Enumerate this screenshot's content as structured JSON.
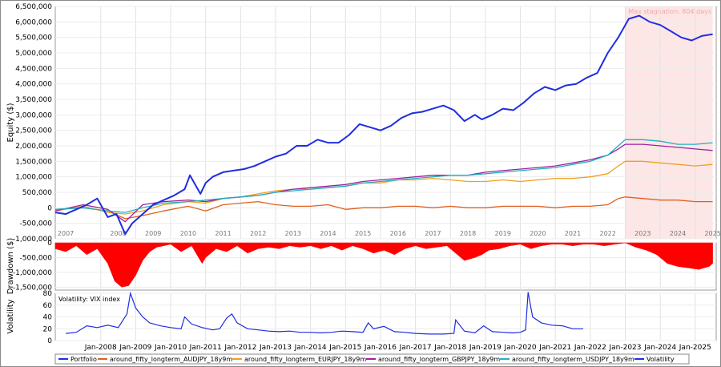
{
  "chart_data": [
    {
      "type": "line",
      "ylabel": "Equity ($)",
      "ylim": [
        -1000000,
        6500000
      ],
      "ytick_labels": [
        "6,500,000",
        "6,000,000",
        "5,500,000",
        "5,000,000",
        "4,500,000",
        "4,000,000",
        "3,500,000",
        "3,000,000",
        "2,500,000",
        "2,000,000",
        "1,500,000",
        "1,000,000",
        "500,000",
        "0",
        "-500,000",
        "-1,000,000"
      ],
      "year_labels": [
        "2007",
        "2008",
        "2009",
        "2010",
        "2011",
        "2012",
        "2013",
        "2014",
        "2015",
        "2016",
        "2017",
        "2018",
        "2019",
        "2020",
        "2021",
        "2022",
        "2023",
        "2024",
        "2025"
      ],
      "annotation": "Max stagnation: 804 days",
      "stagnation_start": 2023.0,
      "stagnation_end": 2025.5,
      "grid": true,
      "series": [
        {
          "name": "Portfolio",
          "color": "#1f2ee0",
          "x": [
            2006.7,
            2007.0,
            2007.3,
            2007.6,
            2007.9,
            2008.2,
            2008.45,
            2008.7,
            2008.9,
            2009.2,
            2009.5,
            2009.8,
            2010.1,
            2010.4,
            2010.55,
            2010.7,
            2010.85,
            2011.0,
            2011.2,
            2011.5,
            2011.8,
            2012.1,
            2012.4,
            2012.7,
            2013.0,
            2013.3,
            2013.6,
            2013.9,
            2014.2,
            2014.5,
            2014.8,
            2015.1,
            2015.4,
            2015.7,
            2016.0,
            2016.3,
            2016.6,
            2016.9,
            2017.2,
            2017.5,
            2017.8,
            2018.1,
            2018.4,
            2018.7,
            2018.9,
            2019.2,
            2019.5,
            2019.8,
            2020.1,
            2020.4,
            2020.7,
            2021.0,
            2021.3,
            2021.6,
            2021.9,
            2022.2,
            2022.5,
            2022.8,
            2023.1,
            2023.4,
            2023.7,
            2024.0,
            2024.3,
            2024.6,
            2024.9,
            2025.2,
            2025.5
          ],
          "y": [
            -150000,
            -200000,
            -50000,
            100000,
            300000,
            -300000,
            -200000,
            -850000,
            -500000,
            -200000,
            100000,
            250000,
            400000,
            600000,
            1050000,
            750000,
            450000,
            800000,
            1000000,
            1150000,
            1200000,
            1250000,
            1350000,
            1500000,
            1650000,
            1750000,
            2000000,
            2000000,
            2200000,
            2100000,
            2100000,
            2350000,
            2700000,
            2600000,
            2500000,
            2650000,
            2900000,
            3050000,
            3100000,
            3200000,
            3300000,
            3150000,
            2800000,
            3000000,
            2850000,
            3000000,
            3200000,
            3150000,
            3400000,
            3700000,
            3900000,
            3800000,
            3950000,
            4000000,
            4200000,
            4350000,
            5000000,
            5500000,
            6100000,
            6200000,
            6000000,
            5900000,
            5700000,
            5500000,
            5400000,
            5550000,
            5600000
          ]
        },
        {
          "name": "around_fifty_longterm_AUDJPY_18y9m",
          "color": "#e06020",
          "x": [
            2006.7,
            2007.5,
            2008.2,
            2008.7,
            2009.2,
            2009.8,
            2010.5,
            2011.0,
            2011.5,
            2012.0,
            2012.5,
            2013.0,
            2013.5,
            2014.0,
            2014.5,
            2015.0,
            2015.5,
            2016.0,
            2016.5,
            2017.0,
            2017.5,
            2018.0,
            2018.5,
            2019.0,
            2019.5,
            2020.0,
            2020.5,
            2021.0,
            2021.5,
            2022.0,
            2022.5,
            2022.8,
            2023.0,
            2023.5,
            2024.0,
            2024.5,
            2025.0,
            2025.5
          ],
          "y": [
            -50000,
            0,
            -100000,
            -350000,
            -250000,
            -100000,
            50000,
            -100000,
            100000,
            150000,
            200000,
            100000,
            50000,
            50000,
            100000,
            -50000,
            0,
            0,
            50000,
            50000,
            0,
            50000,
            0,
            0,
            50000,
            50000,
            50000,
            0,
            50000,
            50000,
            100000,
            300000,
            350000,
            300000,
            250000,
            250000,
            200000,
            200000
          ]
        },
        {
          "name": "around_fifty_longterm_EURJPY_18y9m",
          "color": "#f0a020",
          "x": [
            2006.7,
            2007.5,
            2008.2,
            2008.7,
            2009.2,
            2009.8,
            2010.5,
            2011.0,
            2011.5,
            2012.0,
            2012.5,
            2013.0,
            2013.5,
            2014.0,
            2014.5,
            2015.0,
            2015.5,
            2016.0,
            2016.5,
            2017.0,
            2017.5,
            2018.0,
            2018.5,
            2019.0,
            2019.5,
            2020.0,
            2020.5,
            2021.0,
            2021.5,
            2022.0,
            2022.5,
            2022.8,
            2023.0,
            2023.5,
            2024.0,
            2024.5,
            2025.0,
            2025.5
          ],
          "y": [
            -100000,
            50000,
            -150000,
            -200000,
            -100000,
            100000,
            200000,
            150000,
            300000,
            350000,
            450000,
            550000,
            600000,
            600000,
            650000,
            700000,
            800000,
            800000,
            900000,
            900000,
            950000,
            900000,
            850000,
            850000,
            900000,
            850000,
            900000,
            950000,
            950000,
            1000000,
            1100000,
            1350000,
            1500000,
            1500000,
            1450000,
            1400000,
            1350000,
            1400000
          ]
        },
        {
          "name": "around_fifty_longterm_GBPJPY_18y9m",
          "color": "#a020a0",
          "x": [
            2006.7,
            2007.5,
            2008.2,
            2008.7,
            2009.2,
            2009.8,
            2010.5,
            2011.0,
            2011.5,
            2012.0,
            2012.5,
            2013.0,
            2013.5,
            2014.0,
            2014.5,
            2015.0,
            2015.5,
            2016.0,
            2016.5,
            2017.0,
            2017.5,
            2018.0,
            2018.5,
            2019.0,
            2019.5,
            2020.0,
            2020.5,
            2021.0,
            2021.5,
            2022.0,
            2022.5,
            2022.8,
            2023.0,
            2023.5,
            2024.0,
            2024.5,
            2025.0,
            2025.5
          ],
          "y": [
            -100000,
            100000,
            -50000,
            -450000,
            100000,
            200000,
            250000,
            200000,
            300000,
            350000,
            400000,
            500000,
            600000,
            650000,
            700000,
            750000,
            850000,
            900000,
            950000,
            1000000,
            1050000,
            1050000,
            1050000,
            1150000,
            1200000,
            1250000,
            1300000,
            1350000,
            1450000,
            1550000,
            1700000,
            1900000,
            2050000,
            2050000,
            2000000,
            1950000,
            1900000,
            1850000
          ]
        },
        {
          "name": "around_fifty_longterm_USDJPY_18y9m",
          "color": "#20b0c0",
          "x": [
            2006.7,
            2007.5,
            2008.2,
            2008.7,
            2009.2,
            2009.8,
            2010.5,
            2011.0,
            2011.5,
            2012.0,
            2012.5,
            2013.0,
            2013.5,
            2014.0,
            2014.5,
            2015.0,
            2015.5,
            2016.0,
            2016.5,
            2017.0,
            2017.5,
            2018.0,
            2018.5,
            2019.0,
            2019.5,
            2020.0,
            2020.5,
            2021.0,
            2021.5,
            2022.0,
            2022.5,
            2022.8,
            2023.0,
            2023.5,
            2024.0,
            2024.5,
            2025.0,
            2025.5
          ],
          "y": [
            -50000,
            0,
            -100000,
            -150000,
            0,
            150000,
            200000,
            250000,
            300000,
            350000,
            400000,
            500000,
            550000,
            600000,
            650000,
            700000,
            800000,
            850000,
            900000,
            950000,
            1000000,
            1050000,
            1050000,
            1100000,
            1150000,
            1200000,
            1250000,
            1300000,
            1400000,
            1500000,
            1700000,
            2000000,
            2200000,
            2200000,
            2150000,
            2050000,
            2050000,
            2100000
          ]
        }
      ]
    },
    {
      "type": "area",
      "ylabel": "Drawdown ($)",
      "ylim": [
        -1600000,
        0
      ],
      "ytick_labels": [
        "0",
        "-500,000",
        "-1,000,000",
        "-1,500,000"
      ],
      "color": "#ff0000",
      "x": [
        2006.7,
        2007.0,
        2007.3,
        2007.6,
        2007.9,
        2008.2,
        2008.4,
        2008.6,
        2008.8,
        2009.0,
        2009.2,
        2009.4,
        2009.6,
        2009.8,
        2010.0,
        2010.3,
        2010.6,
        2010.9,
        2011.0,
        2011.3,
        2011.6,
        2011.9,
        2012.2,
        2012.5,
        2012.8,
        2013.1,
        2013.4,
        2013.7,
        2014.0,
        2014.3,
        2014.6,
        2014.9,
        2015.2,
        2015.5,
        2015.8,
        2016.1,
        2016.4,
        2016.7,
        2017.0,
        2017.3,
        2017.6,
        2017.9,
        2018.1,
        2018.4,
        2018.7,
        2018.9,
        2019.1,
        2019.4,
        2019.7,
        2020.0,
        2020.3,
        2020.6,
        2020.9,
        2021.2,
        2021.5,
        2021.8,
        2022.1,
        2022.4,
        2022.7,
        2023.0,
        2023.3,
        2023.6,
        2023.9,
        2024.2,
        2024.5,
        2024.8,
        2025.1,
        2025.4,
        2025.5
      ],
      "y": [
        -200000,
        -300000,
        -100000,
        -400000,
        -200000,
        -700000,
        -1300000,
        -1500000,
        -1450000,
        -1100000,
        -600000,
        -300000,
        -150000,
        -100000,
        -50000,
        -300000,
        -100000,
        -700000,
        -500000,
        -200000,
        -300000,
        -100000,
        -350000,
        -200000,
        -150000,
        -200000,
        -100000,
        -150000,
        -100000,
        -200000,
        -100000,
        -250000,
        -100000,
        -200000,
        -350000,
        -250000,
        -400000,
        -200000,
        -100000,
        -200000,
        -150000,
        -100000,
        -300000,
        -600000,
        -500000,
        -400000,
        -250000,
        -200000,
        -100000,
        -50000,
        -200000,
        -100000,
        -50000,
        -50000,
        -100000,
        -50000,
        -50000,
        -100000,
        -50000,
        0,
        -150000,
        -250000,
        -400000,
        -700000,
        -800000,
        -850000,
        -900000,
        -800000,
        -700000
      ]
    },
    {
      "type": "line",
      "ylabel": "Volatility",
      "label": "Volatility: VIX index",
      "ylim": [
        0,
        80
      ],
      "ytick_labels": [
        "80",
        "60",
        "40",
        "20",
        "0"
      ],
      "color": "#1f2ee0",
      "x": [
        2007.0,
        2007.3,
        2007.6,
        2007.9,
        2008.2,
        2008.5,
        2008.75,
        2008.85,
        2009.0,
        2009.2,
        2009.4,
        2009.7,
        2010.0,
        2010.3,
        2010.4,
        2010.6,
        2010.9,
        2011.2,
        2011.4,
        2011.6,
        2011.75,
        2011.9,
        2012.2,
        2012.5,
        2012.8,
        2013.1,
        2013.4,
        2013.7,
        2014.0,
        2014.3,
        2014.6,
        2014.9,
        2015.2,
        2015.5,
        2015.65,
        2015.8,
        2016.1,
        2016.4,
        2016.7,
        2017.0,
        2017.4,
        2017.8,
        2018.1,
        2018.15,
        2018.4,
        2018.7,
        2018.95,
        2019.2,
        2019.5,
        2019.8,
        2020.0,
        2020.15,
        2020.22,
        2020.35,
        2020.6,
        2020.9,
        2021.2,
        2021.5,
        2021.8
      ],
      "y": [
        12,
        14,
        25,
        22,
        26,
        22,
        45,
        80,
        55,
        40,
        30,
        25,
        22,
        20,
        40,
        28,
        22,
        18,
        20,
        38,
        45,
        30,
        20,
        18,
        16,
        15,
        16,
        14,
        14,
        13,
        14,
        16,
        15,
        14,
        30,
        20,
        24,
        15,
        14,
        12,
        11,
        11,
        12,
        35,
        16,
        13,
        25,
        15,
        14,
        13,
        14,
        18,
        82,
        40,
        30,
        26,
        25,
        20,
        20
      ]
    }
  ],
  "x_axis": {
    "tick_labels": [
      "Jan-2008",
      "Jan-2009",
      "Jan-2010",
      "Jan-2011",
      "Jan-2012",
      "Jan-2013",
      "Jan-2014",
      "Jan-2015",
      "Jan-2016",
      "Jan-2017",
      "Jan-2018",
      "Jan-2019",
      "Jan-2020",
      "Jan-2021",
      "Jan-2022",
      "Jan-2023",
      "Jan-2024",
      "Jan-2025"
    ],
    "tick_years": [
      2008,
      2009,
      2010,
      2011,
      2012,
      2013,
      2014,
      2015,
      2016,
      2017,
      2018,
      2019,
      2020,
      2021,
      2022,
      2023,
      2024,
      2025
    ]
  },
  "legend": [
    {
      "label": "Portfolio",
      "color": "#1f2ee0"
    },
    {
      "label": "around_fifty_longterm_AUDJPY_18y9m",
      "color": "#e06020"
    },
    {
      "label": "around_fifty_longterm_EURJPY_18y9m",
      "color": "#f0a020"
    },
    {
      "label": "around_fifty_longterm_GBPJPY_18y9m",
      "color": "#a020a0"
    },
    {
      "label": "around_fifty_longterm_USDJPY_18y9m",
      "color": "#20b0c0"
    },
    {
      "label": "Volatility",
      "color": "#1f2ee0"
    }
  ]
}
